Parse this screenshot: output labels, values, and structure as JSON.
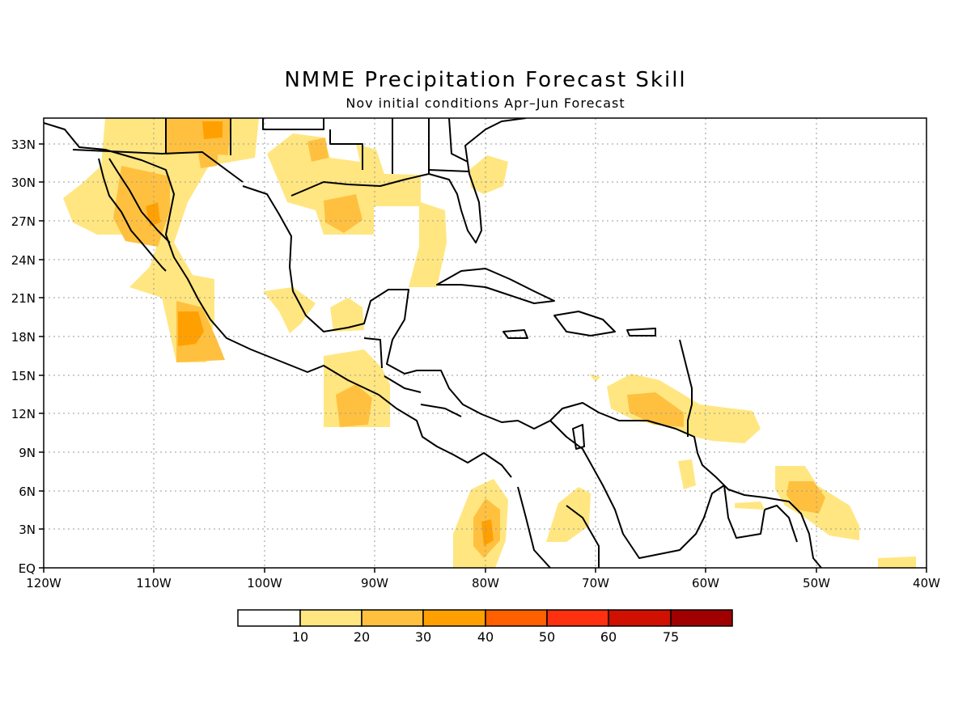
{
  "title": "NMME Precipitation Forecast Skill",
  "subtitle": "Nov initial conditions  Apr–Jun Forecast",
  "map": {
    "lon_range": [
      -120,
      -40
    ],
    "lat_range": [
      0,
      35
    ],
    "lon_ticks": [
      "120W",
      "110W",
      "100W",
      "90W",
      "80W",
      "70W",
      "60W",
      "50W",
      "40W"
    ],
    "lat_ticks": [
      "EQ",
      "3N",
      "6N",
      "9N",
      "12N",
      "15N",
      "18N",
      "21N",
      "24N",
      "27N",
      "30N",
      "33N"
    ],
    "grid": "dotted"
  },
  "colorbar": {
    "labels": [
      "10",
      "20",
      "30",
      "40",
      "50",
      "60",
      "75"
    ],
    "colors": [
      "#ffffff",
      "#ffe680",
      "#ffc040",
      "#ffa000",
      "#ff6000",
      "#ff3010",
      "#d01000",
      "#a00000"
    ]
  },
  "skill_colors": {
    "c10": "#ffe680",
    "c20": "#ffc040",
    "c30": "#ffa000"
  }
}
